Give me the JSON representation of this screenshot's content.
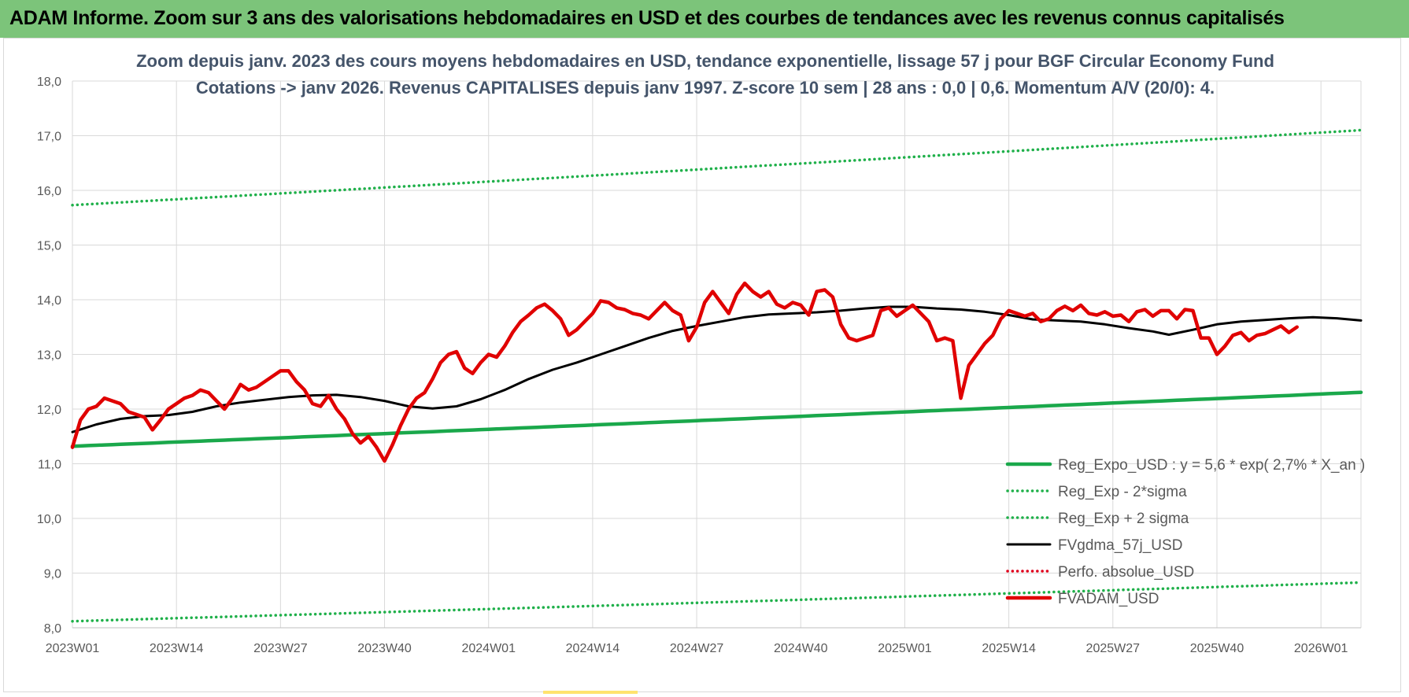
{
  "banner": {
    "title": "ADAM Informe. Zoom sur 3 ans des valorisations hebdomadaires en USD et des courbes de tendances avec les revenus connus capitalisés"
  },
  "colors": {
    "banner_bg": "#7cc47a",
    "reg_expo": "#1aa84b",
    "sigma": "#1fb04a",
    "fvgdma": "#000000",
    "perfo": "#e0001b",
    "fvadam": "#e00000",
    "grid": "#d9d9d9",
    "title": "#44546a"
  },
  "chart_data": {
    "type": "line",
    "title_lines": [
      "Zoom depuis janv. 2023 des cours moyens hebdomadaires en USD, tendance exponentielle, lissage 57 j pour BGF Circular Economy Fund",
      "Cotations -> janv 2026. Revenus CAPITALISES depuis janv 1997. Z-score 10 sem | 28 ans : 0,0 | 0,6. Momentum A/V (20/0): 4."
    ],
    "xlabel": "",
    "ylabel": "",
    "ylim": [
      8.0,
      18.0
    ],
    "y_ticks": [
      "8,0",
      "9,0",
      "10,0",
      "11,0",
      "12,0",
      "13,0",
      "14,0",
      "15,0",
      "16,0",
      "17,0",
      "18,0"
    ],
    "x_ticks": [
      "2023W01",
      "2023W14",
      "2023W27",
      "2023W40",
      "2024W01",
      "2024W14",
      "2024W27",
      "2024W40",
      "2025W01",
      "2025W14",
      "2025W27",
      "2025W40",
      "2026W01"
    ],
    "x_range_weeks": [
      0,
      161
    ],
    "grid": true,
    "legend_position": "bottom-right",
    "series": [
      {
        "name": "Reg_Expo_USD : y = 5,6 * exp( 2,7% *  X_an )",
        "style": "solid-thick",
        "color": "#1aa84b",
        "start": 11.32,
        "growth_per_year": 0.027
      },
      {
        "name": "Reg_Exp - 2*sigma",
        "style": "dotted",
        "color": "#1fb04a",
        "start": 8.12,
        "growth_per_year": 0.027
      },
      {
        "name": "Reg_Exp + 2 sigma",
        "style": "dotted",
        "color": "#1fb04a",
        "start": 15.73,
        "growth_per_year": 0.027
      },
      {
        "name": "FVgdma_57j_USD",
        "style": "solid",
        "color": "#000000",
        "points": [
          [
            0,
            11.58
          ],
          [
            3,
            11.72
          ],
          [
            6,
            11.82
          ],
          [
            9,
            11.87
          ],
          [
            12,
            11.89
          ],
          [
            15,
            11.95
          ],
          [
            18,
            12.05
          ],
          [
            21,
            12.12
          ],
          [
            24,
            12.17
          ],
          [
            27,
            12.22
          ],
          [
            30,
            12.25
          ],
          [
            33,
            12.26
          ],
          [
            36,
            12.22
          ],
          [
            39,
            12.15
          ],
          [
            42,
            12.05
          ],
          [
            45,
            12.01
          ],
          [
            48,
            12.05
          ],
          [
            51,
            12.18
          ],
          [
            54,
            12.35
          ],
          [
            57,
            12.55
          ],
          [
            60,
            12.72
          ],
          [
            63,
            12.85
          ],
          [
            66,
            13.0
          ],
          [
            69,
            13.15
          ],
          [
            72,
            13.3
          ],
          [
            75,
            13.43
          ],
          [
            78,
            13.52
          ],
          [
            81,
            13.6
          ],
          [
            84,
            13.68
          ],
          [
            87,
            13.73
          ],
          [
            90,
            13.75
          ],
          [
            93,
            13.77
          ],
          [
            96,
            13.8
          ],
          [
            99,
            13.84
          ],
          [
            102,
            13.87
          ],
          [
            105,
            13.87
          ],
          [
            108,
            13.84
          ],
          [
            111,
            13.82
          ],
          [
            114,
            13.78
          ],
          [
            117,
            13.72
          ],
          [
            120,
            13.64
          ],
          [
            123,
            13.62
          ],
          [
            126,
            13.6
          ],
          [
            129,
            13.55
          ],
          [
            132,
            13.48
          ],
          [
            135,
            13.42
          ],
          [
            137,
            13.36
          ],
          [
            140,
            13.45
          ],
          [
            143,
            13.55
          ],
          [
            146,
            13.6
          ],
          [
            149,
            13.63
          ],
          [
            152,
            13.66
          ],
          [
            155,
            13.68
          ],
          [
            158,
            13.66
          ],
          [
            161,
            13.62
          ]
        ]
      },
      {
        "name": "Perfo. absolue_USD",
        "style": "dotted",
        "color": "#e0001b",
        "points": []
      },
      {
        "name": "FVADAM_USD",
        "style": "solid-thick",
        "color": "#e00000",
        "points": [
          [
            0,
            11.3
          ],
          [
            1,
            11.8
          ],
          [
            2,
            12.0
          ],
          [
            3,
            12.05
          ],
          [
            4,
            12.2
          ],
          [
            5,
            12.15
          ],
          [
            6,
            12.1
          ],
          [
            7,
            11.95
          ],
          [
            8,
            11.9
          ],
          [
            9,
            11.85
          ],
          [
            10,
            11.62
          ],
          [
            11,
            11.8
          ],
          [
            12,
            12.0
          ],
          [
            13,
            12.1
          ],
          [
            14,
            12.2
          ],
          [
            15,
            12.25
          ],
          [
            16,
            12.35
          ],
          [
            17,
            12.3
          ],
          [
            18,
            12.15
          ],
          [
            19,
            12.0
          ],
          [
            20,
            12.2
          ],
          [
            21,
            12.45
          ],
          [
            22,
            12.35
          ],
          [
            23,
            12.4
          ],
          [
            24,
            12.5
          ],
          [
            25,
            12.6
          ],
          [
            26,
            12.7
          ],
          [
            27,
            12.7
          ],
          [
            28,
            12.5
          ],
          [
            29,
            12.35
          ],
          [
            30,
            12.1
          ],
          [
            31,
            12.05
          ],
          [
            32,
            12.25
          ],
          [
            33,
            12.0
          ],
          [
            34,
            11.82
          ],
          [
            35,
            11.55
          ],
          [
            36,
            11.38
          ],
          [
            37,
            11.5
          ],
          [
            38,
            11.3
          ],
          [
            39,
            11.05
          ],
          [
            40,
            11.35
          ],
          [
            41,
            11.7
          ],
          [
            42,
            12.0
          ],
          [
            43,
            12.2
          ],
          [
            44,
            12.3
          ],
          [
            45,
            12.55
          ],
          [
            46,
            12.85
          ],
          [
            47,
            13.0
          ],
          [
            48,
            13.05
          ],
          [
            49,
            12.75
          ],
          [
            50,
            12.65
          ],
          [
            51,
            12.85
          ],
          [
            52,
            13.0
          ],
          [
            53,
            12.95
          ],
          [
            54,
            13.15
          ],
          [
            55,
            13.4
          ],
          [
            56,
            13.6
          ],
          [
            57,
            13.72
          ],
          [
            58,
            13.85
          ],
          [
            59,
            13.92
          ],
          [
            60,
            13.8
          ],
          [
            61,
            13.65
          ],
          [
            62,
            13.35
          ],
          [
            63,
            13.45
          ],
          [
            64,
            13.6
          ],
          [
            65,
            13.75
          ],
          [
            66,
            13.98
          ],
          [
            67,
            13.95
          ],
          [
            68,
            13.85
          ],
          [
            69,
            13.82
          ],
          [
            70,
            13.75
          ],
          [
            71,
            13.72
          ],
          [
            72,
            13.65
          ],
          [
            73,
            13.8
          ],
          [
            74,
            13.95
          ],
          [
            75,
            13.8
          ],
          [
            76,
            13.72
          ],
          [
            77,
            13.25
          ],
          [
            78,
            13.5
          ],
          [
            79,
            13.95
          ],
          [
            80,
            14.15
          ],
          [
            81,
            13.95
          ],
          [
            82,
            13.75
          ],
          [
            83,
            14.1
          ],
          [
            84,
            14.3
          ],
          [
            85,
            14.15
          ],
          [
            86,
            14.05
          ],
          [
            87,
            14.15
          ],
          [
            88,
            13.92
          ],
          [
            89,
            13.85
          ],
          [
            90,
            13.95
          ],
          [
            91,
            13.9
          ],
          [
            92,
            13.72
          ],
          [
            93,
            14.15
          ],
          [
            94,
            14.18
          ],
          [
            95,
            14.05
          ],
          [
            96,
            13.55
          ],
          [
            97,
            13.3
          ],
          [
            98,
            13.25
          ],
          [
            99,
            13.3
          ],
          [
            100,
            13.35
          ],
          [
            101,
            13.8
          ],
          [
            102,
            13.85
          ],
          [
            103,
            13.7
          ],
          [
            104,
            13.8
          ],
          [
            105,
            13.9
          ],
          [
            106,
            13.75
          ],
          [
            107,
            13.6
          ],
          [
            108,
            13.25
          ],
          [
            109,
            13.3
          ],
          [
            110,
            13.25
          ],
          [
            111,
            12.2
          ],
          [
            112,
            12.8
          ],
          [
            113,
            13.0
          ],
          [
            114,
            13.2
          ],
          [
            115,
            13.35
          ],
          [
            116,
            13.65
          ],
          [
            117,
            13.8
          ],
          [
            118,
            13.75
          ],
          [
            119,
            13.7
          ],
          [
            120,
            13.75
          ],
          [
            121,
            13.6
          ],
          [
            122,
            13.65
          ],
          [
            123,
            13.8
          ],
          [
            124,
            13.88
          ],
          [
            125,
            13.8
          ],
          [
            126,
            13.9
          ],
          [
            127,
            13.75
          ],
          [
            128,
            13.72
          ],
          [
            129,
            13.78
          ],
          [
            130,
            13.7
          ],
          [
            131,
            13.72
          ],
          [
            132,
            13.6
          ],
          [
            133,
            13.78
          ],
          [
            134,
            13.82
          ],
          [
            135,
            13.7
          ],
          [
            136,
            13.8
          ],
          [
            137,
            13.8
          ],
          [
            138,
            13.65
          ],
          [
            139,
            13.82
          ],
          [
            140,
            13.8
          ],
          [
            141,
            13.3
          ],
          [
            142,
            13.3
          ],
          [
            143,
            13.0
          ],
          [
            144,
            13.15
          ],
          [
            145,
            13.35
          ],
          [
            146,
            13.4
          ],
          [
            147,
            13.25
          ],
          [
            148,
            13.35
          ],
          [
            149,
            13.38
          ],
          [
            150,
            13.45
          ],
          [
            151,
            13.52
          ],
          [
            152,
            13.4
          ],
          [
            153,
            13.5
          ]
        ]
      }
    ]
  }
}
